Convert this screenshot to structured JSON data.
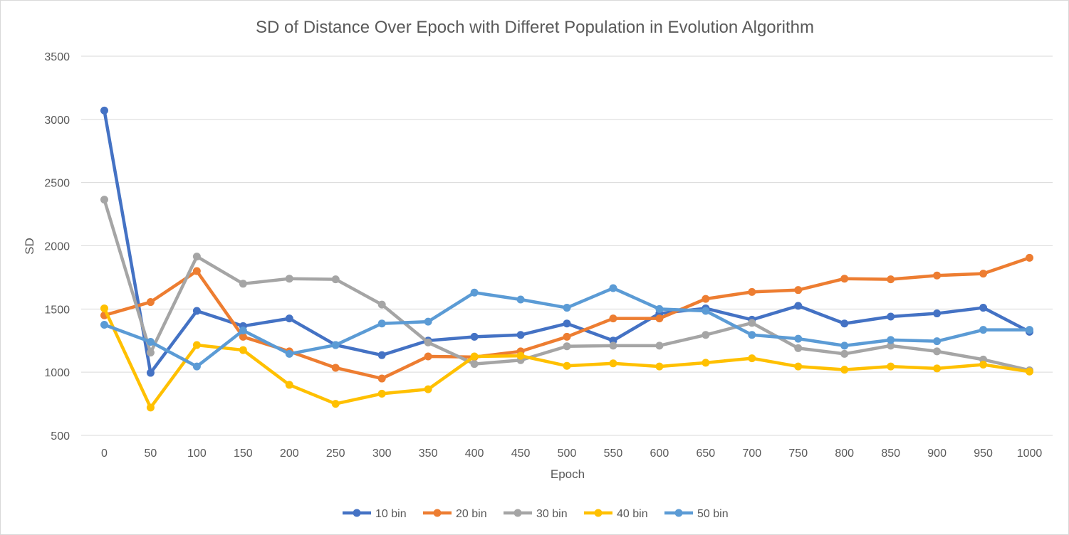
{
  "chart_data": {
    "type": "line",
    "title": "SD of Distance Over Epoch with Differet Population in Evolution Algorithm",
    "xlabel": "Epoch",
    "ylabel": "SD",
    "categories": [
      "0",
      "50",
      "100",
      "150",
      "200",
      "250",
      "300",
      "350",
      "400",
      "450",
      "500",
      "550",
      "600",
      "650",
      "700",
      "750",
      "800",
      "850",
      "900",
      "950",
      "1000"
    ],
    "ylim": [
      500,
      3500
    ],
    "yticks": [
      500,
      1000,
      1500,
      2000,
      2500,
      3000,
      3500
    ],
    "grid": true,
    "legend_position": "bottom",
    "series": [
      {
        "name": "10 bin",
        "color": "#4472C4",
        "values": [
          3070,
          995,
          1485,
          1365,
          1425,
          1215,
          1135,
          1250,
          1280,
          1295,
          1385,
          1250,
          1465,
          1505,
          1415,
          1525,
          1385,
          1440,
          1465,
          1510,
          1320
        ]
      },
      {
        "name": "20 bin",
        "color": "#ED7D31",
        "values": [
          1450,
          1555,
          1800,
          1280,
          1165,
          1035,
          950,
          1125,
          1120,
          1165,
          1280,
          1425,
          1425,
          1580,
          1635,
          1650,
          1740,
          1735,
          1765,
          1780,
          1905
        ]
      },
      {
        "name": "30 bin",
        "color": "#A5A5A5",
        "values": [
          2365,
          1155,
          1915,
          1700,
          1740,
          1735,
          1535,
          1235,
          1065,
          1095,
          1205,
          1210,
          1210,
          1295,
          1390,
          1190,
          1145,
          1210,
          1165,
          1100,
          1015
        ]
      },
      {
        "name": "40 bin",
        "color": "#FFC000",
        "values": [
          1505,
          720,
          1215,
          1175,
          900,
          750,
          830,
          865,
          1125,
          1130,
          1050,
          1070,
          1045,
          1075,
          1110,
          1045,
          1020,
          1045,
          1030,
          1060,
          1005
        ]
      },
      {
        "name": "50 bin",
        "color": "#5B9BD5",
        "values": [
          1375,
          1240,
          1045,
          1330,
          1145,
          1215,
          1385,
          1400,
          1630,
          1575,
          1510,
          1665,
          1500,
          1485,
          1295,
          1265,
          1210,
          1255,
          1245,
          1335,
          1335
        ]
      }
    ]
  }
}
